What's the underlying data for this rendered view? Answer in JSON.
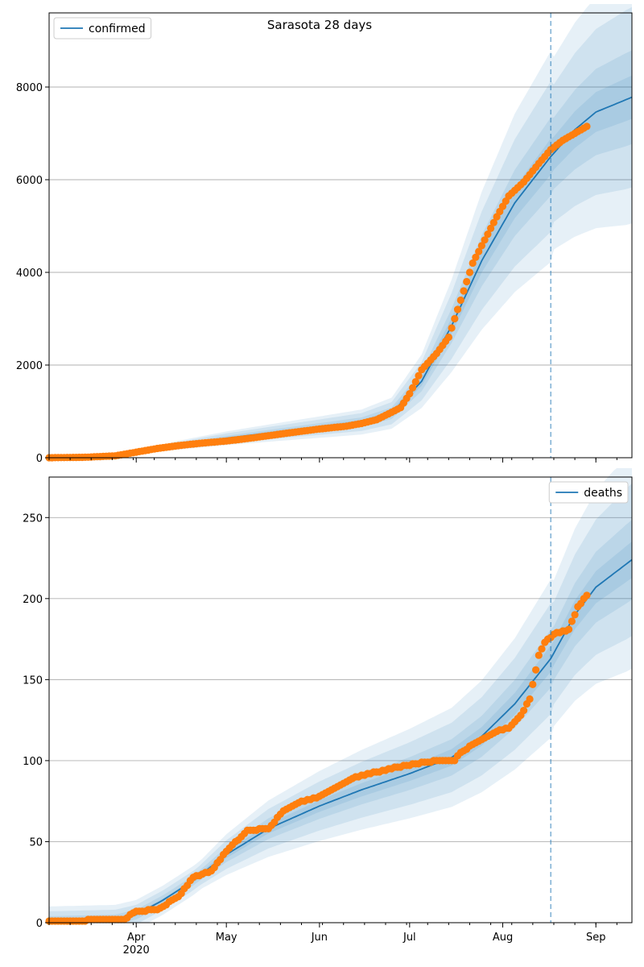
{
  "figure": {
    "title": "Sarasota 28 days"
  },
  "colors": {
    "line": "#1f77b4",
    "points": "#ff7f0e",
    "band": "#1f77b4",
    "grid": "#b0b0b0"
  },
  "x_axis": {
    "start": "2020-03-03",
    "end": "2020-09-13",
    "forecast_start": "2020-08-17",
    "ticks": [
      {
        "date": "2020-04-01",
        "label": "Apr",
        "sublabel": "2020"
      },
      {
        "date": "2020-05-01",
        "label": "May",
        "sublabel": ""
      },
      {
        "date": "2020-06-01",
        "label": "Jun",
        "sublabel": ""
      },
      {
        "date": "2020-07-01",
        "label": "Jul",
        "sublabel": ""
      },
      {
        "date": "2020-08-01",
        "label": "Aug",
        "sublabel": ""
      },
      {
        "date": "2020-09-01",
        "label": "Sep",
        "sublabel": ""
      }
    ]
  },
  "chart_data": [
    {
      "type": "line",
      "name": "confirmed",
      "legend": {
        "label": "confirmed",
        "position": "upper-left"
      },
      "ylim": [
        0,
        9600
      ],
      "yticks": [
        0,
        2000,
        4000,
        6000,
        8000
      ],
      "grid": "y",
      "model": {
        "x": [
          "2020-03-03",
          "2020-03-20",
          "2020-04-01",
          "2020-04-15",
          "2020-05-01",
          "2020-05-15",
          "2020-06-01",
          "2020-06-15",
          "2020-06-25",
          "2020-07-05",
          "2020-07-15",
          "2020-07-25",
          "2020-08-05",
          "2020-08-17",
          "2020-08-25",
          "2020-09-01",
          "2020-09-13"
        ],
        "y": [
          0,
          20,
          110,
          270,
          420,
          530,
          660,
          770,
          960,
          1650,
          2850,
          4250,
          5500,
          6500,
          7080,
          7460,
          7780
        ],
        "band_widths": [
          0.35,
          0.25,
          0.13,
          0.06
        ]
      },
      "observed": {
        "x": [
          "2020-03-03",
          "2020-03-15",
          "2020-03-25",
          "2020-04-01",
          "2020-04-08",
          "2020-04-15",
          "2020-04-22",
          "2020-05-01",
          "2020-05-10",
          "2020-05-20",
          "2020-06-01",
          "2020-06-10",
          "2020-06-15",
          "2020-06-20",
          "2020-06-25",
          "2020-06-28",
          "2020-07-01",
          "2020-07-05",
          "2020-07-10",
          "2020-07-14",
          "2020-07-18",
          "2020-07-22",
          "2020-07-26",
          "2020-07-30",
          "2020-08-03",
          "2020-08-08",
          "2020-08-13",
          "2020-08-17",
          "2020-08-21",
          "2020-08-25",
          "2020-08-29"
        ],
        "y": [
          0,
          10,
          40,
          120,
          200,
          260,
          310,
          360,
          430,
          520,
          620,
          680,
          740,
          820,
          980,
          1080,
          1380,
          1900,
          2250,
          2600,
          3400,
          4200,
          4700,
          5200,
          5650,
          5950,
          6350,
          6650,
          6850,
          7000,
          7150
        ]
      }
    },
    {
      "type": "line",
      "name": "deaths",
      "legend": {
        "label": "deaths",
        "position": "upper-right"
      },
      "ylim": [
        0,
        275
      ],
      "yticks": [
        0,
        50,
        100,
        150,
        200,
        250
      ],
      "grid": "y",
      "model": {
        "x": [
          "2020-03-03",
          "2020-03-25",
          "2020-04-01",
          "2020-04-10",
          "2020-04-20",
          "2020-05-01",
          "2020-05-15",
          "2020-06-01",
          "2020-06-15",
          "2020-07-01",
          "2020-07-15",
          "2020-07-25",
          "2020-08-05",
          "2020-08-17",
          "2020-08-25",
          "2020-09-01",
          "2020-09-13"
        ],
        "y": [
          1,
          2,
          5,
          14,
          26,
          42,
          58,
          72,
          82,
          92,
          102,
          115,
          135,
          163,
          190,
          207,
          224
        ],
        "band_widths": [
          0.3,
          0.21,
          0.11,
          0.05
        ],
        "band_floor": [
          9,
          6,
          3,
          1
        ]
      },
      "observed": {
        "x": [
          "2020-03-03",
          "2020-03-28",
          "2020-04-01",
          "2020-04-08",
          "2020-04-15",
          "2020-04-20",
          "2020-04-26",
          "2020-05-01",
          "2020-05-08",
          "2020-05-15",
          "2020-05-20",
          "2020-05-25",
          "2020-06-01",
          "2020-06-07",
          "2020-06-13",
          "2020-06-20",
          "2020-06-27",
          "2020-07-03",
          "2020-07-10",
          "2020-07-16",
          "2020-07-18",
          "2020-07-24",
          "2020-07-30",
          "2020-08-03",
          "2020-08-07",
          "2020-08-10",
          "2020-08-13",
          "2020-08-15",
          "2020-08-18",
          "2020-08-23",
          "2020-08-26",
          "2020-08-29"
        ],
        "y": [
          1,
          2,
          7,
          8,
          16,
          28,
          32,
          44,
          57,
          58,
          69,
          74,
          78,
          84,
          90,
          93,
          96,
          98,
          100,
          100,
          105,
          112,
          118,
          120,
          128,
          138,
          165,
          173,
          178,
          181,
          195,
          202
        ]
      }
    }
  ]
}
